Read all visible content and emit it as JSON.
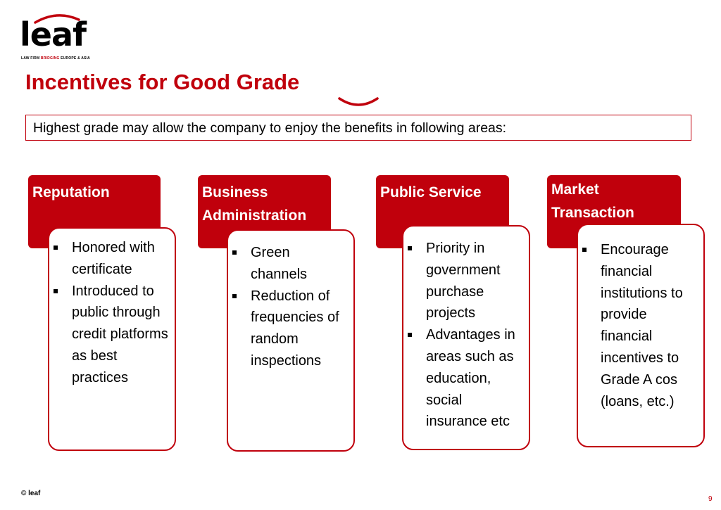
{
  "logo": {
    "word": "leaf",
    "tag_prefix": "LAW FIRM",
    "tag_highlight": "BRIDGING",
    "tag_suffix": "EUROPE & ASIA"
  },
  "title": "Incentives for Good Grade",
  "intro": "Highest grade may allow the company to enjoy the benefits in following areas:",
  "columns": [
    {
      "heading": "Reputation",
      "bullets": [
        "Honored with certificate",
        "Introduced to public through credit platforms as best practices"
      ]
    },
    {
      "heading": "Business Administration",
      "bullets": [
        "Green channels",
        "Reduction of frequencies of random inspections"
      ]
    },
    {
      "heading": "Public Service",
      "bullets": [
        "Priority in government purchase projects",
        "Advantages in areas such as education, social insurance etc"
      ]
    },
    {
      "heading": "Market Transaction",
      "bullets": [
        "Encourage financial institutions to provide financial incentives to Grade A cos (loans, etc.)"
      ]
    }
  ],
  "footer": {
    "copyright": "© leaf",
    "page_number": "9"
  },
  "colors": {
    "accent": "#c0000c",
    "text": "#000000",
    "background": "#ffffff"
  }
}
